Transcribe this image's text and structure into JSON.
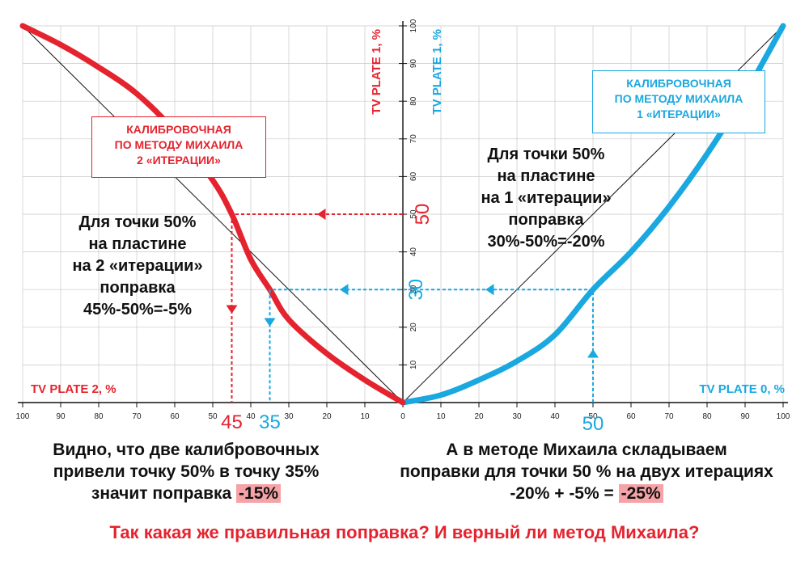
{
  "chart_data": {
    "type": "line",
    "x_ticks_left": [
      100,
      90,
      80,
      70,
      60,
      50,
      40,
      30,
      20,
      10,
      0
    ],
    "x_ticks_right": [
      10,
      20,
      30,
      40,
      50,
      60,
      70,
      80,
      90,
      100
    ],
    "y_ticks": [
      10,
      20,
      30,
      40,
      50,
      60,
      70,
      80,
      90,
      100
    ],
    "xlim": [
      0,
      100
    ],
    "ylim": [
      0,
      100
    ],
    "grid": true,
    "axis_labels": {
      "x_left": "TV PLATE 2, %",
      "x_right": "TV PLATE 0, %",
      "y_red": "TV PLATE 1, %",
      "y_blue": "TV PLATE 1, %"
    },
    "series": [
      {
        "name": "КАЛИБРОВОЧНАЯ ПО МЕТОДУ МИХАИЛА 1 «ИТЕРАЦИИ»",
        "side": "right",
        "color": "#1aa8e0",
        "x": [
          0,
          10,
          20,
          30,
          40,
          50,
          60,
          70,
          80,
          90,
          100
        ],
        "y": [
          0,
          2,
          6,
          11,
          18,
          30,
          40,
          52,
          66,
          82,
          100
        ]
      },
      {
        "name": "КАЛИБРОВОЧНАЯ ПО МЕТОДУ МИХАИЛА 2 «ИТЕРАЦИИ»",
        "side": "left",
        "color": "#e5232e",
        "x": [
          0,
          10,
          20,
          30,
          35,
          40,
          45,
          50,
          60,
          70,
          80,
          90,
          100
        ],
        "y": [
          0,
          6,
          13,
          22,
          30,
          38,
          50,
          59,
          72,
          82,
          89,
          95,
          100
        ]
      }
    ],
    "reference_lines": [
      {
        "side": "left",
        "from": [
          0,
          0
        ],
        "to": [
          100,
          100
        ],
        "color": "#111111"
      },
      {
        "side": "right",
        "from": [
          0,
          0
        ],
        "to": [
          100,
          100
        ],
        "color": "#111111"
      }
    ],
    "guides": [
      {
        "color": "#e5232e",
        "points": [
          [
            0,
            50
          ],
          [
            45,
            50
          ],
          [
            45,
            0
          ]
        ],
        "x_label": "45",
        "y_label": "50",
        "side": "left"
      },
      {
        "color": "#1aa8e0",
        "points": [
          [
            50,
            0
          ],
          [
            50,
            30
          ],
          [
            0,
            30
          ],
          [
            35,
            30
          ],
          [
            35,
            0
          ]
        ],
        "x_label": "50",
        "x2_label": "35",
        "y_label": "30"
      }
    ]
  },
  "labels": {
    "box_left": [
      "КАЛИБРОВОЧНАЯ",
      "ПО МЕТОДУ МИХАИЛА",
      "2 «ИТЕРАЦИИ»"
    ],
    "box_right": [
      "КАЛИБРОВОЧНАЯ",
      "ПО МЕТОДУ МИХАИЛА",
      "1 «ИТЕРАЦИИ»"
    ],
    "note_left": [
      "Для точки 50%",
      "на пластине",
      "на 2 «итерации»",
      "поправка",
      "45%-50%=-5%"
    ],
    "note_right": [
      "Для точки 50%",
      "на пластине",
      "на 1 «итерации»",
      "поправка",
      "30%-50%=-20%"
    ]
  },
  "bottom": {
    "left_line1": "Видно, что две калибровочных",
    "left_line2": "привели точку 50% в точку 35%",
    "left_line3_text": "значит поправка ",
    "left_line3_hl": "-15%",
    "right_line1": "А в методе Михаила складываем",
    "right_line2": "поправки для точки 50 % на двух итерациях",
    "right_line3_text": "-20% + -5% = ",
    "right_line3_hl": "-25%",
    "question": "Так какая же правильная поправка? И верный ли метод Михаила?"
  },
  "colors": {
    "red": "#e5232e",
    "blue": "#1aa8e0",
    "grid": "#c9c9c9",
    "highlight": "#f5a3a7"
  }
}
